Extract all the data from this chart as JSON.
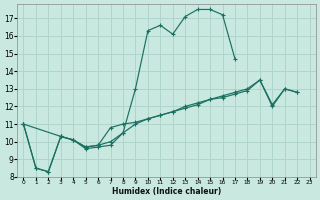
{
  "bg_color": "#c8e8e0",
  "grid_color": "#aed4cc",
  "line_color": "#1a7060",
  "xlabel": "Humidex (Indice chaleur)",
  "xlim": [
    -0.5,
    23.5
  ],
  "ylim": [
    8,
    17.8
  ],
  "yticks": [
    8,
    9,
    10,
    11,
    12,
    13,
    14,
    15,
    16,
    17
  ],
  "xticks": [
    0,
    1,
    2,
    3,
    4,
    5,
    6,
    7,
    8,
    9,
    10,
    11,
    12,
    13,
    14,
    15,
    16,
    17,
    18,
    19,
    20,
    21,
    22,
    23
  ],
  "curve1_x": [
    0,
    1,
    2,
    3,
    4,
    5,
    6,
    7,
    8,
    9,
    10,
    11,
    12,
    13,
    14,
    15,
    16,
    17
  ],
  "curve1_y": [
    11.0,
    8.5,
    8.3,
    10.3,
    10.1,
    9.6,
    9.7,
    9.8,
    10.5,
    13.0,
    16.3,
    16.6,
    16.1,
    17.1,
    17.5,
    17.5,
    17.2,
    14.7
  ],
  "curve2_x": [
    0,
    1,
    2,
    3,
    4,
    5,
    6,
    7,
    8,
    9,
    10,
    11,
    12,
    13,
    14,
    15,
    16,
    17,
    18,
    19,
    20,
    21,
    22
  ],
  "curve2_y": [
    11.0,
    8.5,
    8.3,
    10.3,
    10.1,
    9.7,
    9.8,
    10.8,
    11.0,
    11.1,
    11.3,
    11.5,
    11.7,
    12.0,
    12.2,
    12.4,
    12.5,
    12.7,
    12.9,
    13.5,
    12.0,
    13.0,
    12.8
  ],
  "curve3_x": [
    0,
    3,
    4,
    5,
    6,
    7,
    8,
    9,
    10,
    11,
    12,
    13,
    14,
    15,
    16,
    17,
    18,
    19,
    20,
    21,
    22
  ],
  "curve3_y": [
    11.0,
    10.3,
    10.1,
    9.7,
    9.8,
    10.0,
    10.5,
    11.0,
    11.3,
    11.5,
    11.7,
    11.9,
    12.1,
    12.4,
    12.6,
    12.8,
    13.0,
    13.5,
    12.1,
    13.0,
    12.8
  ]
}
